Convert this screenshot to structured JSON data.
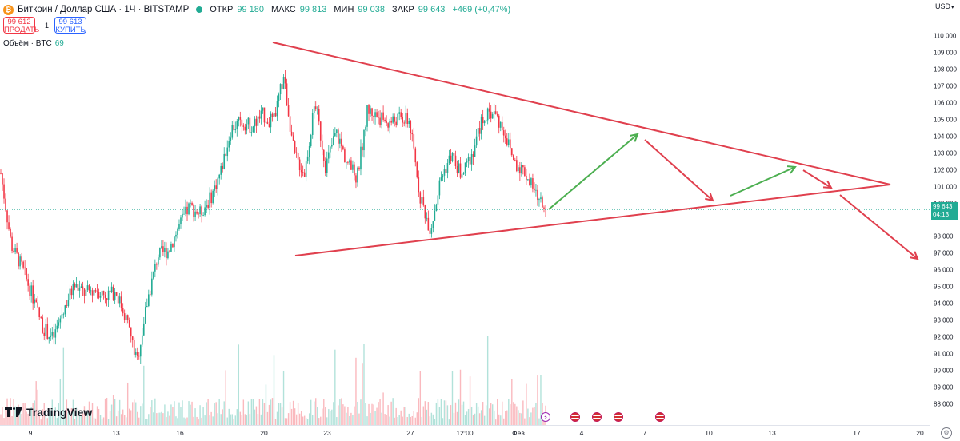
{
  "legend": {
    "logo_letter": "₿",
    "symbol": "Биткоин / Доллар США · 1Ч · BITSTAMP",
    "open_label": "ОТКР",
    "open": "99 180",
    "high_label": "МАКС",
    "high": "99 813",
    "low_label": "МИН",
    "low": "99 038",
    "close_label": "ЗАКР",
    "close": "99 643",
    "change": "+469 (+0,47%)"
  },
  "trade": {
    "sell_price": "99 612",
    "sell_label": "ПРОДАТЬ",
    "spread": "1",
    "buy_price": "99 613",
    "buy_label": "КУПИТЬ"
  },
  "volume": {
    "label": "Объём · BTC",
    "value": "69"
  },
  "brand": "TradingView",
  "currency": "USD",
  "price_tag": {
    "price": "99 643",
    "countdown": "04:13"
  },
  "colors": {
    "up": "#22ab94",
    "down": "#f23645",
    "line": "#e0404e",
    "arrow_up": "#4caf50",
    "arrow_down": "#e0404e"
  },
  "icons": [
    "tradingview-logo-icon",
    "lightning-event-icon",
    "us-flag-event-icon",
    "settings-gear-icon"
  ],
  "chart_data": {
    "type": "candlestick",
    "ylim": [
      87700,
      110350
    ],
    "yticks": [
      "110 000",
      "109 000",
      "108 000",
      "107 000",
      "106 000",
      "105 000",
      "104 000",
      "103 000",
      "102 000",
      "101 000",
      "100 000",
      "98 000",
      "97 000",
      "96 000",
      "95 000",
      "94 000",
      "93 000",
      "92 000",
      "91 000",
      "90 000",
      "89 000",
      "88 000"
    ],
    "xticks": [
      "9",
      "13",
      "16",
      "20",
      "23",
      "27",
      "12:00",
      "Фев",
      "4",
      "7",
      "10",
      "13",
      "17",
      "20"
    ],
    "last_price": 99643,
    "price_path": [
      {
        "t": "09 янв",
        "p": 101800
      },
      {
        "t": "",
        "p": 97500
      },
      {
        "t": "",
        "p": 96200
      },
      {
        "t": "",
        "p": 94500
      },
      {
        "t": "",
        "p": 92600
      },
      {
        "t": "",
        "p": 91900
      },
      {
        "t": "",
        "p": 93700
      },
      {
        "t": "",
        "p": 95100
      },
      {
        "t": "",
        "p": 94600
      },
      {
        "t": "",
        "p": 94900
      },
      {
        "t": "",
        "p": 94500
      },
      {
        "t": "13 янв",
        "p": 94700
      },
      {
        "t": "",
        "p": 93100
      },
      {
        "t": "",
        "p": 90500
      },
      {
        "t": "",
        "p": 94200
      },
      {
        "t": "",
        "p": 96900
      },
      {
        "t": "",
        "p": 97200
      },
      {
        "t": "",
        "p": 98600
      },
      {
        "t": "16 янв",
        "p": 99800
      },
      {
        "t": "",
        "p": 99400
      },
      {
        "t": "",
        "p": 100300
      },
      {
        "t": "",
        "p": 101900
      },
      {
        "t": "",
        "p": 104500
      },
      {
        "t": "",
        "p": 104900
      },
      {
        "t": "",
        "p": 104600
      },
      {
        "t": "",
        "p": 105300
      },
      {
        "t": "20 янв",
        "p": 104800
      },
      {
        "t": "",
        "p": 107600
      },
      {
        "t": "",
        "p": 102900
      },
      {
        "t": "",
        "p": 101800
      },
      {
        "t": "",
        "p": 106100
      },
      {
        "t": "",
        "p": 102200
      },
      {
        "t": "",
        "p": 104300
      },
      {
        "t": "23 янв",
        "p": 102500
      },
      {
        "t": "",
        "p": 101500
      },
      {
        "t": "",
        "p": 105600
      },
      {
        "t": "",
        "p": 105200
      },
      {
        "t": "",
        "p": 104800
      },
      {
        "t": "",
        "p": 105100
      },
      {
        "t": "",
        "p": 104900
      },
      {
        "t": "27 янв",
        "p": 100500
      },
      {
        "t": "",
        "p": 98400
      },
      {
        "t": "",
        "p": 101500
      },
      {
        "t": "",
        "p": 102900
      },
      {
        "t": "",
        "p": 101600
      },
      {
        "t": "",
        "p": 103000
      },
      {
        "t": "12:00",
        "p": 105100
      },
      {
        "t": "",
        "p": 105500
      },
      {
        "t": "",
        "p": 104400
      },
      {
        "t": "",
        "p": 102500
      },
      {
        "t": "",
        "p": 101900
      },
      {
        "t": "",
        "p": 100600
      },
      {
        "t": "",
        "p": 99643
      }
    ],
    "volume_max_btc": 820,
    "drawings": {
      "triangle_upper": [
        [
          "20 янв 02:00",
          109300
        ],
        [
          "2 фев",
          101000
        ]
      ],
      "triangle_lower": [
        [
          "21 янв",
          97000
        ],
        [
          "2 фев",
          101000
        ]
      ],
      "arrows": [
        "up",
        "down",
        "up",
        "down",
        "down"
      ]
    }
  }
}
